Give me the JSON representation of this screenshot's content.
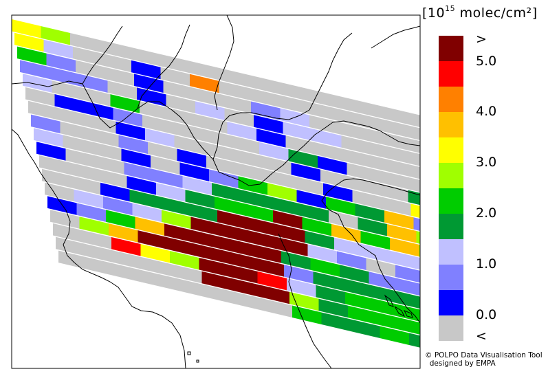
{
  "legend": {
    "unit": "molec/cm²",
    "exponent_base": "10",
    "exponent": "15",
    "labels": [
      ">",
      "5.0",
      "4.0",
      "3.0",
      "2.0",
      "1.0",
      "0.0",
      "<"
    ],
    "colors": [
      "#800000",
      "#ff0000",
      "#ff8000",
      "#ffc000",
      "#ffff00",
      "#a0ff00",
      "#00cc00",
      "#009933",
      "#c0c0ff",
      "#8080ff",
      "#0000ff",
      "#c8c8c8"
    ]
  },
  "credit_line1": "© POLPO Data Visualisation Tool",
  "credit_line2": "designed by EMPA",
  "swaths": [
    [
      "yel",
      "lim",
      "gry",
      "gry",
      "gry",
      "gry",
      "gry",
      "gry",
      "gry",
      "gry",
      "gry",
      "gry",
      "gry",
      "gry"
    ],
    [
      "yel",
      "lav",
      "gry",
      "gry",
      "blu",
      "gry",
      "org",
      "gry",
      "gry",
      "gry",
      "gry",
      "gry",
      "gry",
      "gry"
    ],
    [
      "grn",
      "pur",
      "gry",
      "gry",
      "blu",
      "gry",
      "gry",
      "gry",
      "pur",
      "lav",
      "gry",
      "gry",
      "gry",
      "gry"
    ],
    [
      "pur",
      "pur",
      "pur",
      "gry",
      "blu",
      "gry",
      "lav",
      "gry",
      "blu",
      "lav",
      "lav",
      "gry",
      "gry",
      "gry"
    ],
    [
      "lav",
      "gry",
      "gry",
      "grn",
      "gry",
      "gry",
      "gry",
      "lav",
      "blu",
      "gry",
      "gry",
      "gry",
      "gry",
      "gry"
    ],
    [
      "gry",
      "blu",
      "blu",
      "pur",
      "gry",
      "gry",
      "gry",
      "gry",
      "lav",
      "dgn",
      "blu",
      "gry",
      "gry",
      "gry"
    ],
    [
      "gry",
      "gry",
      "gry",
      "blu",
      "lav",
      "gry",
      "gry",
      "gry",
      "gry",
      "blu",
      "gry",
      "gry",
      "gry",
      "dgn"
    ],
    [
      "pur",
      "gry",
      "gry",
      "pur",
      "gry",
      "blu",
      "gry",
      "gry",
      "gry",
      "gry",
      "blu",
      "gry",
      "gry",
      "yel"
    ],
    [
      "lav",
      "gry",
      "gry",
      "blu",
      "gry",
      "blu",
      "pur",
      "grn",
      "lim",
      "blu",
      "grn",
      "dgn",
      "amb",
      "pur"
    ],
    [
      "blu",
      "gry",
      "gry",
      "pur",
      "pur",
      "lav",
      "dgn",
      "dgn",
      "dgn",
      "dgn",
      "gry",
      "dgn",
      "amb",
      "lim"
    ],
    [
      "gry",
      "gry",
      "gry",
      "blu",
      "lav",
      "dgn",
      "grn",
      "grn",
      "drk",
      "grn",
      "amb",
      "grn",
      "amb",
      "lim"
    ],
    [
      "gry",
      "gry",
      "blu",
      "dgn",
      "dgn",
      "dgn",
      "drk",
      "drk",
      "drk",
      "dgn",
      "lav",
      "lav",
      "lav",
      "dgn"
    ],
    [
      "gry",
      "lav",
      "pur",
      "lav",
      "lim",
      "drk",
      "drk",
      "drk",
      "drk",
      "lav",
      "pur",
      "gry",
      "pur",
      "dgn"
    ],
    [
      "blu",
      "pur",
      "grn",
      "amb",
      "drk",
      "drk",
      "drk",
      "drk",
      "dgn",
      "grn",
      "dgn",
      "pur",
      "pur",
      "grn"
    ],
    [
      "gry",
      "lim",
      "amb",
      "drk",
      "drk",
      "drk",
      "drk",
      "drk",
      "pur",
      "dgn",
      "dgn",
      "dgn",
      "dgn",
      "lim"
    ],
    [
      "gry",
      "gry",
      "red",
      "yel",
      "lim",
      "drk",
      "drk",
      "red",
      "lav",
      "dgn",
      "grn",
      "grn",
      "grn",
      "dgn"
    ],
    [
      "gry",
      "gry",
      "gry",
      "gry",
      "gry",
      "drk",
      "drk",
      "drk",
      "lim",
      "dgn",
      "grn",
      "grn",
      "grn",
      "dgn"
    ],
    [
      "gry",
      "gry",
      "gry",
      "gry",
      "gry",
      "gry",
      "gry",
      "gry",
      "grn",
      "dgn",
      "dgn",
      "grn",
      "dgn",
      "dgn"
    ]
  ],
  "palette": {
    "drk": "#800000",
    "red": "#ff0000",
    "org": "#ff8000",
    "amb": "#ffc000",
    "yel": "#ffff00",
    "lim": "#a0ff00",
    "grn": "#00cc00",
    "dgn": "#009933",
    "lav": "#c0c0ff",
    "pur": "#8080ff",
    "blu": "#0000ff",
    "gry": "#c8c8c8"
  }
}
